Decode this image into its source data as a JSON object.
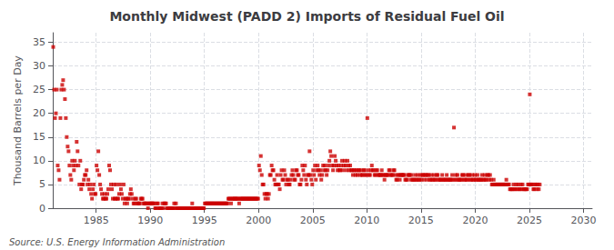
{
  "chart_data": {
    "type": "scatter",
    "title": "Monthly Midwest (PADD 2) Imports of Residual Fuel Oil",
    "ylabel": "Thousand Barrels per Day",
    "annotation": "Source: U.S. Energy Information Administration",
    "color": "#cc0000",
    "marker": "square",
    "grid": true,
    "xlim": [
      1981.0,
      2030.8
    ],
    "xticks": [
      1985,
      1990,
      1995,
      2000,
      2005,
      2010,
      2015,
      2020,
      2025,
      2030
    ],
    "ylim": [
      0,
      37
    ],
    "yticks": [
      0,
      5,
      10,
      15,
      20,
      25,
      30,
      35
    ],
    "x": [
      1981.041667,
      1981.125,
      1981.208333,
      1981.291667,
      1981.375,
      1981.458333,
      1981.541667,
      1981.625,
      1981.708333,
      1981.791667,
      1981.875,
      1981.958333,
      1982.041667,
      1982.125,
      1982.208333,
      1982.291667,
      1982.375,
      1982.458333,
      1982.541667,
      1982.625,
      1982.708333,
      1982.791667,
      1982.875,
      1982.958333,
      1983.041667,
      1983.125,
      1983.208333,
      1983.291667,
      1983.375,
      1983.458333,
      1983.541667,
      1983.625,
      1983.708333,
      1983.791667,
      1983.875,
      1983.958333,
      1984.041667,
      1984.125,
      1984.208333,
      1984.291667,
      1984.375,
      1984.458333,
      1984.541667,
      1984.625,
      1984.708333,
      1984.791667,
      1984.875,
      1984.958333,
      1985.041667,
      1985.125,
      1985.208333,
      1985.291667,
      1985.375,
      1985.458333,
      1985.541667,
      1985.625,
      1985.708333,
      1985.791667,
      1985.875,
      1985.958333,
      1986.041667,
      1986.125,
      1986.208333,
      1986.291667,
      1986.375,
      1986.458333,
      1986.541667,
      1986.625,
      1986.708333,
      1986.791667,
      1986.875,
      1986.958333,
      1987.041667,
      1987.125,
      1987.208333,
      1987.291667,
      1987.375,
      1987.458333,
      1987.541667,
      1987.625,
      1987.708333,
      1987.791667,
      1987.875,
      1987.958333,
      1988.041667,
      1988.125,
      1988.208333,
      1988.291667,
      1988.375,
      1988.458333,
      1988.541667,
      1988.625,
      1988.708333,
      1988.791667,
      1988.875,
      1988.958333,
      1989.041667,
      1989.125,
      1989.208333,
      1989.291667,
      1989.375,
      1989.458333,
      1989.541667,
      1989.625,
      1989.708333,
      1989.791667,
      1989.875,
      1989.958333,
      1990.041667,
      1990.125,
      1990.208333,
      1990.291667,
      1990.375,
      1990.458333,
      1990.541667,
      1990.625,
      1990.708333,
      1990.791667,
      1990.875,
      1990.958333,
      1991.041667,
      1991.125,
      1991.208333,
      1991.291667,
      1991.375,
      1991.458333,
      1991.541667,
      1991.625,
      1991.708333,
      1991.791667,
      1991.875,
      1991.958333,
      1992.041667,
      1992.125,
      1992.208333,
      1992.291667,
      1992.375,
      1992.458333,
      1992.541667,
      1992.625,
      1992.708333,
      1992.791667,
      1992.875,
      1992.958333,
      1993.041667,
      1993.125,
      1993.208333,
      1993.291667,
      1993.375,
      1993.458333,
      1993.541667,
      1993.625,
      1993.708333,
      1993.791667,
      1993.875,
      1993.958333,
      1994.041667,
      1994.125,
      1994.208333,
      1994.291667,
      1994.375,
      1994.458333,
      1994.541667,
      1994.625,
      1994.708333,
      1994.791667,
      1994.875,
      1994.958333,
      1995.041667,
      1995.125,
      1995.208333,
      1995.291667,
      1995.375,
      1995.458333,
      1995.541667,
      1995.625,
      1995.708333,
      1995.791667,
      1995.875,
      1995.958333,
      1996.041667,
      1996.125,
      1996.208333,
      1996.291667,
      1996.375,
      1996.458333,
      1996.541667,
      1996.625,
      1996.708333,
      1996.791667,
      1996.875,
      1996.958333,
      1997.041667,
      1997.125,
      1997.208333,
      1997.291667,
      1997.375,
      1997.458333,
      1997.541667,
      1997.625,
      1997.708333,
      1997.791667,
      1997.875,
      1997.958333,
      1998.041667,
      1998.125,
      1998.208333,
      1998.291667,
      1998.375,
      1998.458333,
      1998.541667,
      1998.625,
      1998.708333,
      1998.791667,
      1998.875,
      1998.958333,
      1999.041667,
      1999.125,
      1999.208333,
      1999.291667,
      1999.375,
      1999.458333,
      1999.541667,
      1999.625,
      1999.708333,
      1999.791667,
      1999.875,
      1999.958333,
      2000.041667,
      2000.125,
      2000.208333,
      2000.291667,
      2000.375,
      2000.458333,
      2000.541667,
      2000.625,
      2000.708333,
      2000.791667,
      2000.875,
      2000.958333,
      2001.041667,
      2001.125,
      2001.208333,
      2001.291667,
      2001.375,
      2001.458333,
      2001.541667,
      2001.625,
      2001.708333,
      2001.791667,
      2001.875,
      2001.958333,
      2002.041667,
      2002.125,
      2002.208333,
      2002.291667,
      2002.375,
      2002.458333,
      2002.541667,
      2002.625,
      2002.708333,
      2002.791667,
      2002.875,
      2002.958333,
      2003.041667,
      2003.125,
      2003.208333,
      2003.291667,
      2003.375,
      2003.458333,
      2003.541667,
      2003.625,
      2003.708333,
      2003.791667,
      2003.875,
      2003.958333,
      2004.041667,
      2004.125,
      2004.208333,
      2004.291667,
      2004.375,
      2004.458333,
      2004.541667,
      2004.625,
      2004.708333,
      2004.791667,
      2004.875,
      2004.958333,
      2005.041667,
      2005.125,
      2005.208333,
      2005.291667,
      2005.375,
      2005.458333,
      2005.541667,
      2005.625,
      2005.708333,
      2005.791667,
      2005.875,
      2005.958333,
      2006.041667,
      2006.125,
      2006.208333,
      2006.291667,
      2006.375,
      2006.458333,
      2006.541667,
      2006.625,
      2006.708333,
      2006.791667,
      2006.875,
      2006.958333,
      2007.041667,
      2007.125,
      2007.208333,
      2007.291667,
      2007.375,
      2007.458333,
      2007.541667,
      2007.625,
      2007.708333,
      2007.791667,
      2007.875,
      2007.958333,
      2008.041667,
      2008.125,
      2008.208333,
      2008.291667,
      2008.375,
      2008.458333,
      2008.541667,
      2008.625,
      2008.708333,
      2008.791667,
      2008.875,
      2008.958333,
      2009.041667,
      2009.125,
      2009.208333,
      2009.291667,
      2009.375,
      2009.458333,
      2009.541667,
      2009.625,
      2009.708333,
      2009.791667,
      2009.875,
      2009.958333,
      2010.041667,
      2010.125,
      2010.208333,
      2010.291667,
      2010.375,
      2010.458333,
      2010.541667,
      2010.625,
      2010.708333,
      2010.791667,
      2010.875,
      2010.958333,
      2011.041667,
      2011.125,
      2011.208333,
      2011.291667,
      2011.375,
      2011.458333,
      2011.541667,
      2011.625,
      2011.708333,
      2011.791667,
      2011.875,
      2011.958333,
      2012.041667,
      2012.125,
      2012.208333,
      2012.291667,
      2012.375,
      2012.458333,
      2012.541667,
      2012.625,
      2012.708333,
      2012.791667,
      2012.875,
      2012.958333,
      2013.041667,
      2013.125,
      2013.208333,
      2013.291667,
      2013.375,
      2013.458333,
      2013.541667,
      2013.625,
      2013.708333,
      2013.791667,
      2013.875,
      2013.958333,
      2014.041667,
      2014.125,
      2014.208333,
      2014.291667,
      2014.375,
      2014.458333,
      2014.541667,
      2014.625,
      2014.708333,
      2014.791667,
      2014.875,
      2014.958333,
      2015.041667,
      2015.125,
      2015.208333,
      2015.291667,
      2015.375,
      2015.458333,
      2015.541667,
      2015.625,
      2015.708333,
      2015.791667,
      2015.875,
      2015.958333,
      2016.041667,
      2016.125,
      2016.208333,
      2016.291667,
      2016.375,
      2016.458333,
      2016.541667,
      2016.625,
      2016.708333,
      2016.791667,
      2016.875,
      2016.958333,
      2017.041667,
      2017.125,
      2017.208333,
      2017.291667,
      2017.375,
      2017.458333,
      2017.541667,
      2017.625,
      2017.708333,
      2017.791667,
      2017.875,
      2017.958333,
      2018.041667,
      2018.125,
      2018.208333,
      2018.291667,
      2018.375,
      2018.458333,
      2018.541667,
      2018.625,
      2018.708333,
      2018.791667,
      2018.875,
      2018.958333,
      2019.041667,
      2019.125,
      2019.208333,
      2019.291667,
      2019.375,
      2019.458333,
      2019.541667,
      2019.625,
      2019.708333,
      2019.791667,
      2019.875,
      2019.958333,
      2020.041667,
      2020.125,
      2020.208333,
      2020.291667,
      2020.375,
      2020.458333,
      2020.541667,
      2020.625,
      2020.708333,
      2020.791667,
      2020.875,
      2020.958333,
      2021.041667,
      2021.125,
      2021.208333,
      2021.291667,
      2021.375,
      2021.458333,
      2021.541667,
      2021.625,
      2021.708333,
      2021.791667,
      2021.875,
      2021.958333,
      2022.041667,
      2022.125,
      2022.208333,
      2022.291667,
      2022.375,
      2022.458333,
      2022.541667,
      2022.625,
      2022.708333,
      2022.791667,
      2022.875,
      2022.958333,
      2023.041667,
      2023.125,
      2023.208333,
      2023.291667,
      2023.375,
      2023.458333,
      2023.541667,
      2023.625,
      2023.708333,
      2023.791667,
      2023.875,
      2023.958333,
      2024.041667,
      2024.125,
      2024.208333,
      2024.291667,
      2024.375,
      2024.458333,
      2024.541667,
      2024.625,
      2024.708333,
      2024.791667,
      2024.875,
      2024.958333,
      2025.041667,
      2025.125,
      2025.208333,
      2025.291667,
      2025.375,
      2025.458333,
      2025.541667,
      2025.625,
      2025.708333,
      2025.791667,
      2025.875,
      2025.958333
    ],
    "values": [
      34,
      25,
      19,
      20,
      25,
      9,
      8,
      6,
      19,
      25,
      26,
      27,
      25,
      23,
      19,
      15,
      13,
      12,
      9,
      7,
      6,
      10,
      9,
      8,
      10,
      9,
      14,
      12,
      9,
      5,
      10,
      4,
      5,
      5,
      6,
      7,
      7,
      8,
      5,
      6,
      4,
      5,
      3,
      2,
      4,
      5,
      3,
      3,
      9,
      8,
      12,
      7,
      5,
      4,
      3,
      2,
      2,
      3,
      2,
      2,
      3,
      4,
      9,
      8,
      5,
      4,
      2,
      5,
      2,
      2,
      5,
      2,
      2,
      3,
      5,
      4,
      3,
      2,
      5,
      1,
      2,
      2,
      1,
      2,
      2,
      3,
      4,
      3,
      2,
      1,
      1,
      2,
      2,
      1,
      1,
      1,
      1,
      2,
      2,
      2,
      1,
      1,
      1,
      1,
      1,
      0,
      1,
      1,
      1,
      1,
      1,
      1,
      1,
      0,
      0,
      1,
      1,
      0,
      0,
      0,
      0,
      1,
      0,
      1,
      1,
      1,
      0,
      0,
      0,
      0,
      0,
      0,
      0,
      0,
      1,
      0,
      1,
      0,
      0,
      0,
      0,
      0,
      0,
      0,
      0,
      0,
      0,
      0,
      0,
      0,
      0,
      0,
      0,
      0,
      1,
      0,
      0,
      0,
      0,
      0,
      0,
      0,
      0,
      0,
      0,
      0,
      0,
      0,
      1,
      1,
      1,
      1,
      1,
      1,
      1,
      1,
      1,
      1,
      1,
      1,
      1,
      1,
      1,
      1,
      1,
      1,
      1,
      1,
      1,
      1,
      1,
      1,
      1,
      1,
      2,
      2,
      2,
      1,
      2,
      2,
      2,
      2,
      2,
      2,
      2,
      2,
      1,
      2,
      2,
      2,
      2,
      2,
      2,
      2,
      2,
      2,
      2,
      2,
      2,
      2,
      2,
      2,
      2,
      2,
      2,
      2,
      2,
      2,
      9,
      8,
      11,
      7,
      5,
      5,
      3,
      2,
      3,
      3,
      2,
      3,
      7,
      7,
      9,
      8,
      8,
      6,
      5,
      5,
      7,
      5,
      5,
      4,
      7,
      8,
      6,
      6,
      8,
      7,
      5,
      6,
      6,
      5,
      5,
      6,
      7,
      8,
      7,
      6,
      6,
      8,
      8,
      7,
      7,
      5,
      5,
      6,
      9,
      8,
      7,
      9,
      6,
      5,
      7,
      7,
      12,
      7,
      6,
      5,
      8,
      7,
      9,
      6,
      8,
      9,
      8,
      7,
      8,
      6,
      7,
      9,
      8,
      9,
      8,
      7,
      8,
      9,
      10,
      12,
      11,
      9,
      8,
      9,
      11,
      10,
      9,
      8,
      9,
      8,
      8,
      9,
      10,
      8,
      9,
      10,
      9,
      8,
      10,
      9,
      8,
      9,
      8,
      8,
      7,
      8,
      8,
      7,
      8,
      7,
      8,
      8,
      7,
      8,
      7,
      7,
      8,
      8,
      7,
      7,
      19,
      8,
      7,
      7,
      8,
      9,
      8,
      8,
      7,
      7,
      8,
      8,
      7,
      7,
      7,
      7,
      8,
      7,
      7,
      6,
      7,
      7,
      7,
      7,
      8,
      8,
      7,
      7,
      7,
      8,
      8,
      7,
      6,
      6,
      7,
      7,
      6,
      7,
      7,
      7,
      7,
      7,
      6,
      6,
      6,
      7,
      7,
      7,
      6,
      7,
      6,
      6,
      6,
      7,
      6,
      6,
      7,
      6,
      6,
      7,
      6,
      7,
      7,
      6,
      7,
      7,
      6,
      7,
      7,
      6,
      6,
      7,
      6,
      6,
      7,
      6,
      6,
      7,
      7,
      6,
      6,
      6,
      6,
      7,
      6,
      6,
      6,
      6,
      7,
      6,
      6,
      6,
      6,
      6,
      7,
      6,
      17,
      6,
      7,
      6,
      7,
      6,
      6,
      6,
      6,
      7,
      7,
      6,
      6,
      7,
      6,
      6,
      7,
      7,
      6,
      6,
      7,
      6,
      6,
      7,
      6,
      6,
      7,
      6,
      6,
      6,
      6,
      7,
      6,
      6,
      7,
      6,
      6,
      7,
      7,
      6,
      7,
      6,
      5,
      5,
      6,
      5,
      5,
      5,
      5,
      5,
      5,
      5,
      5,
      5,
      5,
      5,
      5,
      5,
      6,
      5,
      5,
      5,
      4,
      4,
      4,
      4,
      5,
      4,
      4,
      5,
      4,
      5,
      4,
      4,
      5,
      4,
      5,
      4,
      4,
      4,
      4,
      4,
      5,
      5,
      24,
      5,
      5,
      5,
      4,
      4,
      5,
      5,
      4,
      5,
      4,
      5
    ]
  }
}
